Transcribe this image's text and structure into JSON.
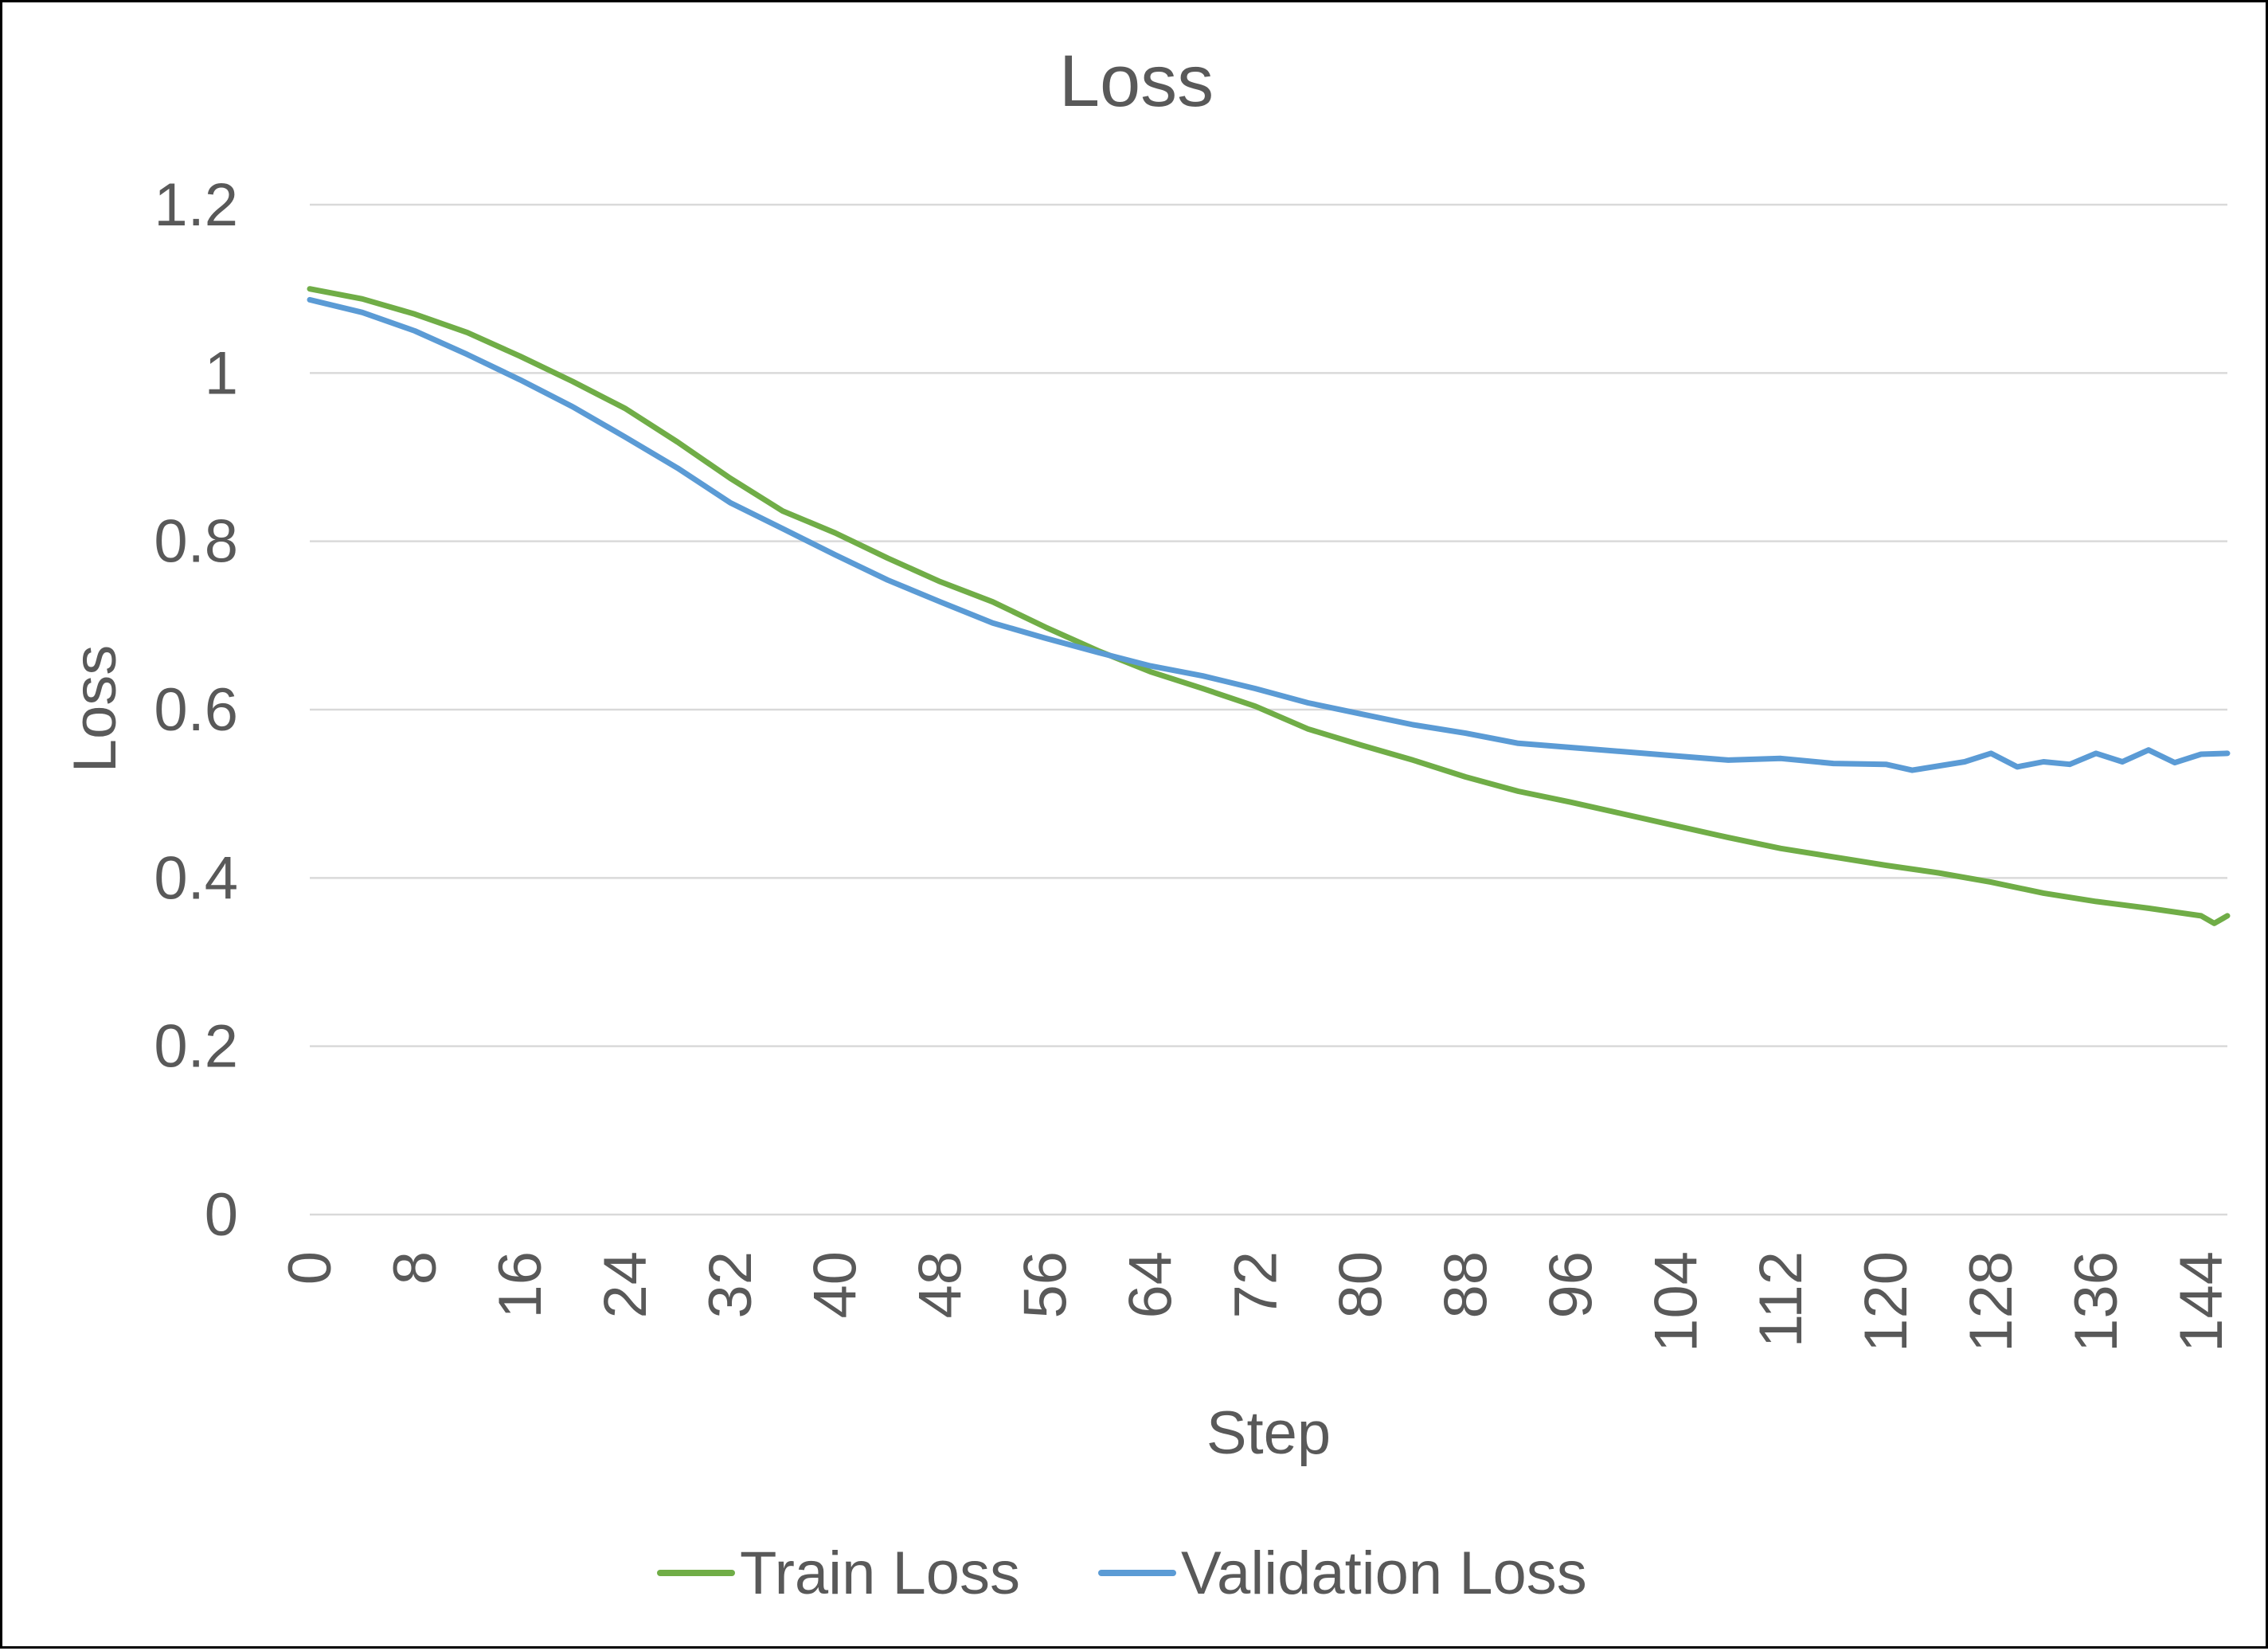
{
  "chart_data": {
    "type": "line",
    "title": "Loss",
    "xlabel": "Step",
    "ylabel": "Loss",
    "xlim": [
      0,
      146
    ],
    "ylim": [
      0,
      1.2
    ],
    "y_ticks": [
      0,
      0.2,
      0.4,
      0.6,
      0.8,
      1,
      1.2
    ],
    "y_tick_labels": [
      "0",
      "0.2",
      "0.4",
      "0.6",
      "0.8",
      "1",
      "1.2"
    ],
    "x_ticks": [
      0,
      8,
      16,
      24,
      32,
      40,
      48,
      56,
      64,
      72,
      80,
      88,
      96,
      104,
      112,
      120,
      128,
      136,
      144
    ],
    "x_tick_labels": [
      "0",
      "8",
      "16",
      "24",
      "32",
      "40",
      "48",
      "56",
      "64",
      "72",
      "80",
      "88",
      "96",
      "104",
      "112",
      "120",
      "128",
      "136",
      "144"
    ],
    "grid": "horizontal",
    "legend_position": "bottom",
    "series": [
      {
        "name": "Train Loss",
        "color": "#70AD47",
        "x": [
          0,
          4,
          8,
          12,
          16,
          20,
          24,
          28,
          32,
          36,
          40,
          44,
          48,
          52,
          56,
          60,
          64,
          68,
          72,
          76,
          80,
          84,
          88,
          92,
          96,
          100,
          104,
          108,
          112,
          116,
          120,
          124,
          128,
          132,
          136,
          140,
          144,
          145,
          146
        ],
        "y": [
          1.1,
          1.088,
          1.07,
          1.048,
          1.02,
          0.99,
          0.958,
          0.918,
          0.875,
          0.836,
          0.81,
          0.78,
          0.752,
          0.728,
          0.698,
          0.67,
          0.645,
          0.625,
          0.604,
          0.577,
          0.558,
          0.54,
          0.52,
          0.503,
          0.49,
          0.476,
          0.462,
          0.448,
          0.435,
          0.425,
          0.415,
          0.406,
          0.395,
          0.382,
          0.372,
          0.364,
          0.355,
          0.346,
          0.355
        ]
      },
      {
        "name": "Validation Loss",
        "color": "#5B9BD5",
        "x": [
          0,
          4,
          8,
          12,
          16,
          20,
          24,
          28,
          32,
          36,
          40,
          44,
          48,
          52,
          56,
          60,
          64,
          68,
          72,
          76,
          80,
          84,
          88,
          92,
          96,
          100,
          104,
          108,
          112,
          116,
          120,
          122,
          126,
          128,
          130,
          132,
          134,
          136,
          138,
          140,
          142,
          144,
          146
        ],
        "y": [
          1.087,
          1.072,
          1.05,
          1.022,
          0.992,
          0.96,
          0.924,
          0.887,
          0.846,
          0.815,
          0.784,
          0.754,
          0.728,
          0.703,
          0.685,
          0.668,
          0.652,
          0.64,
          0.625,
          0.608,
          0.595,
          0.582,
          0.572,
          0.56,
          0.555,
          0.55,
          0.545,
          0.54,
          0.542,
          0.536,
          0.535,
          0.528,
          0.538,
          0.548,
          0.532,
          0.538,
          0.535,
          0.548,
          0.538,
          0.552,
          0.537,
          0.547,
          0.548
        ]
      }
    ]
  }
}
